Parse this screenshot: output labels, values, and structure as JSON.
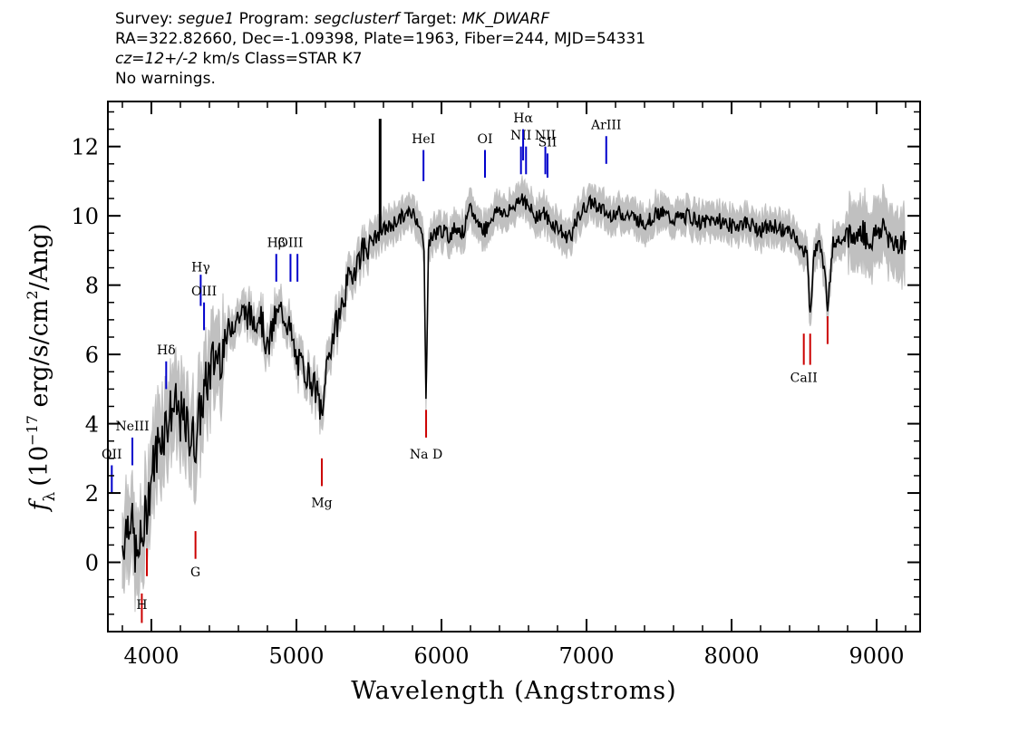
{
  "header": {
    "line1": {
      "survey_label": "Survey: ",
      "survey": "segue1",
      "program_label": " Program: ",
      "program": "segclusterf",
      "target_label": " Target: ",
      "target": "MK_DWARF"
    },
    "line2": "RA=322.82660, Dec=-1.09398, Plate=1963, Fiber=244, MJD=54331",
    "line3": {
      "cz": "cz=12+/-2",
      "cz_unit": " km/s Class=STAR K7"
    },
    "line4": "No warnings."
  },
  "chart_data": {
    "type": "line",
    "xlabel": "Wavelength (Angstroms)",
    "ylabel": "fλ (10^-17 erg/s/cm^2/Ang)",
    "ylabel_parts": {
      "f": "f",
      "lambda": "λ",
      "a": "(10",
      "exp1": "−17",
      "b": " erg/s/cm",
      "exp2": "2",
      "c": "/Ang)"
    },
    "xlim": [
      3700,
      9300
    ],
    "ylim": [
      -2,
      13.3
    ],
    "xticks": [
      4000,
      5000,
      6000,
      7000,
      8000,
      9000
    ],
    "yticks": [
      0,
      2,
      4,
      6,
      8,
      10,
      12
    ],
    "xtick_labels": [
      "4000",
      "5000",
      "6000",
      "7000",
      "8000",
      "9000"
    ],
    "ytick_labels": [
      "0",
      "2",
      "4",
      "6",
      "8",
      "10",
      "12"
    ],
    "series": [
      {
        "color": "#000000",
        "x": [
          3800,
          3850,
          3900,
          3950,
          4000,
          4050,
          4100,
          4150,
          4200,
          4250,
          4300,
          4350,
          4400,
          4450,
          4500,
          4550,
          4600,
          4650,
          4700,
          4750,
          4800,
          4850,
          4900,
          4950,
          5000,
          5050,
          5100,
          5150,
          5180,
          5200,
          5250,
          5300,
          5350,
          5400,
          5450,
          5500,
          5550,
          5600,
          5650,
          5700,
          5750,
          5800,
          5850,
          5880,
          5893,
          5910,
          5950,
          6000,
          6050,
          6100,
          6150,
          6200,
          6250,
          6300,
          6350,
          6400,
          6450,
          6500,
          6550,
          6600,
          6650,
          6700,
          6750,
          6800,
          6850,
          6900,
          6950,
          7000,
          7050,
          7100,
          7150,
          7200,
          7300,
          7400,
          7500,
          7600,
          7700,
          7800,
          7900,
          8000,
          8100,
          8200,
          8300,
          8400,
          8450,
          8498,
          8520,
          8542,
          8570,
          8620,
          8662,
          8700,
          8750,
          8800,
          8850,
          8900,
          8950,
          9000,
          9050,
          9100,
          9150,
          9200
        ],
        "y": [
          0.5,
          1.5,
          0.0,
          1.0,
          2.5,
          3.5,
          4.0,
          4.5,
          4.2,
          3.8,
          3.5,
          4.6,
          5.5,
          6.0,
          6.2,
          6.9,
          7.1,
          7.2,
          7.0,
          7.2,
          6.1,
          7.0,
          7.3,
          6.8,
          5.8,
          5.6,
          5.3,
          4.8,
          4.0,
          5.5,
          6.5,
          7.2,
          8.0,
          8.5,
          9.0,
          9.2,
          9.4,
          9.6,
          9.7,
          9.9,
          10.0,
          10.1,
          9.8,
          9.0,
          4.6,
          9.2,
          9.5,
          9.6,
          9.4,
          9.7,
          9.5,
          10.2,
          9.8,
          9.6,
          10.0,
          10.2,
          10.0,
          10.3,
          10.6,
          10.2,
          10.0,
          10.1,
          9.8,
          9.7,
          9.4,
          9.5,
          10.0,
          10.3,
          10.4,
          10.2,
          10.0,
          10.1,
          10.0,
          9.8,
          10.1,
          9.9,
          10.0,
          9.8,
          9.9,
          9.7,
          9.8,
          9.6,
          9.7,
          9.5,
          9.4,
          8.8,
          9.2,
          7.0,
          9.0,
          9.2,
          7.4,
          9.2,
          9.4,
          9.5,
          9.3,
          9.6,
          9.2,
          9.5,
          9.7,
          9.3,
          9.2,
          9.3
        ]
      }
    ],
    "spike": {
      "x": 5577,
      "y": 12.8
    },
    "emission_lines": [
      {
        "label": "OII",
        "x": 3727,
        "y1": 2.0,
        "y2": 2.8,
        "label_y": 3.0
      },
      {
        "label": "NeIII",
        "x": 3869,
        "y1": 2.8,
        "y2": 3.6,
        "label_y": 3.8
      },
      {
        "label": "Hδ",
        "x": 4102,
        "y1": 5.0,
        "y2": 5.8,
        "label_y": 6.0
      },
      {
        "label": "Hγ",
        "x": 4340,
        "y1": 7.4,
        "y2": 8.3,
        "label_y": 8.4
      },
      {
        "label": "OIII",
        "x": 4363,
        "y1": 6.7,
        "y2": 7.5,
        "label_y": 7.7
      },
      {
        "label": "Hβ",
        "x": 4861,
        "y1": 8.1,
        "y2": 8.9,
        "label_y": 9.1
      },
      {
        "label": "OIII",
        "x": 4959,
        "y1": 8.1,
        "y2": 8.9,
        "label_y": 9.1
      },
      {
        "label": "",
        "x": 5007,
        "y1": 8.1,
        "y2": 8.9,
        "label_y": 9.1
      },
      {
        "label": "HeI",
        "x": 5876,
        "y1": 11.0,
        "y2": 11.9,
        "label_y": 12.1
      },
      {
        "label": "OI",
        "x": 6300,
        "y1": 11.1,
        "y2": 11.9,
        "label_y": 12.1
      },
      {
        "label": "NII",
        "x": 6548,
        "y1": 11.2,
        "y2": 12.0,
        "label_y": 12.2
      },
      {
        "label": "Hα",
        "x": 6563,
        "y1": 11.6,
        "y2": 12.5,
        "label_y": 12.7
      },
      {
        "label": "",
        "x": 6583,
        "y1": 11.2,
        "y2": 12.0,
        "label_y": 12.2
      },
      {
        "label": "NII",
        "x": 6716,
        "y1": 11.2,
        "y2": 12.0,
        "label_y": 12.2
      },
      {
        "label": "SII",
        "x": 6731,
        "y1": 11.1,
        "y2": 11.8,
        "label_y": 12.0
      },
      {
        "label": "ArIII",
        "x": 7136,
        "y1": 11.5,
        "y2": 12.3,
        "label_y": 12.5
      }
    ],
    "absorption_lines": [
      {
        "label": "H",
        "x": 3934,
        "y1": -1.75,
        "y2": -0.9,
        "label_y": -1.35
      },
      {
        "label": "",
        "x": 3969,
        "y1": -0.4,
        "y2": 0.4,
        "label_y": -1.35
      },
      {
        "label": "G",
        "x": 4304,
        "y1": 0.1,
        "y2": 0.9,
        "label_y": -0.4
      },
      {
        "label": "Mg",
        "x": 5175,
        "y1": 2.2,
        "y2": 3.0,
        "label_y": 1.6
      },
      {
        "label": "Na D",
        "x": 5894,
        "y1": 3.6,
        "y2": 4.4,
        "label_y": 3.0
      },
      {
        "label": "CaII",
        "x": 8498,
        "y1": 5.7,
        "y2": 6.6,
        "label_y": 5.2
      },
      {
        "label": "",
        "x": 8542,
        "y1": 5.7,
        "y2": 6.6,
        "label_y": 5.2
      },
      {
        "label": "",
        "x": 8662,
        "y1": 6.3,
        "y2": 7.1,
        "label_y": 5.2
      }
    ],
    "colors": {
      "flux": "#000000",
      "error": "#c0c0c0",
      "emission": "#0000cc",
      "absorption": "#cc0000"
    }
  }
}
